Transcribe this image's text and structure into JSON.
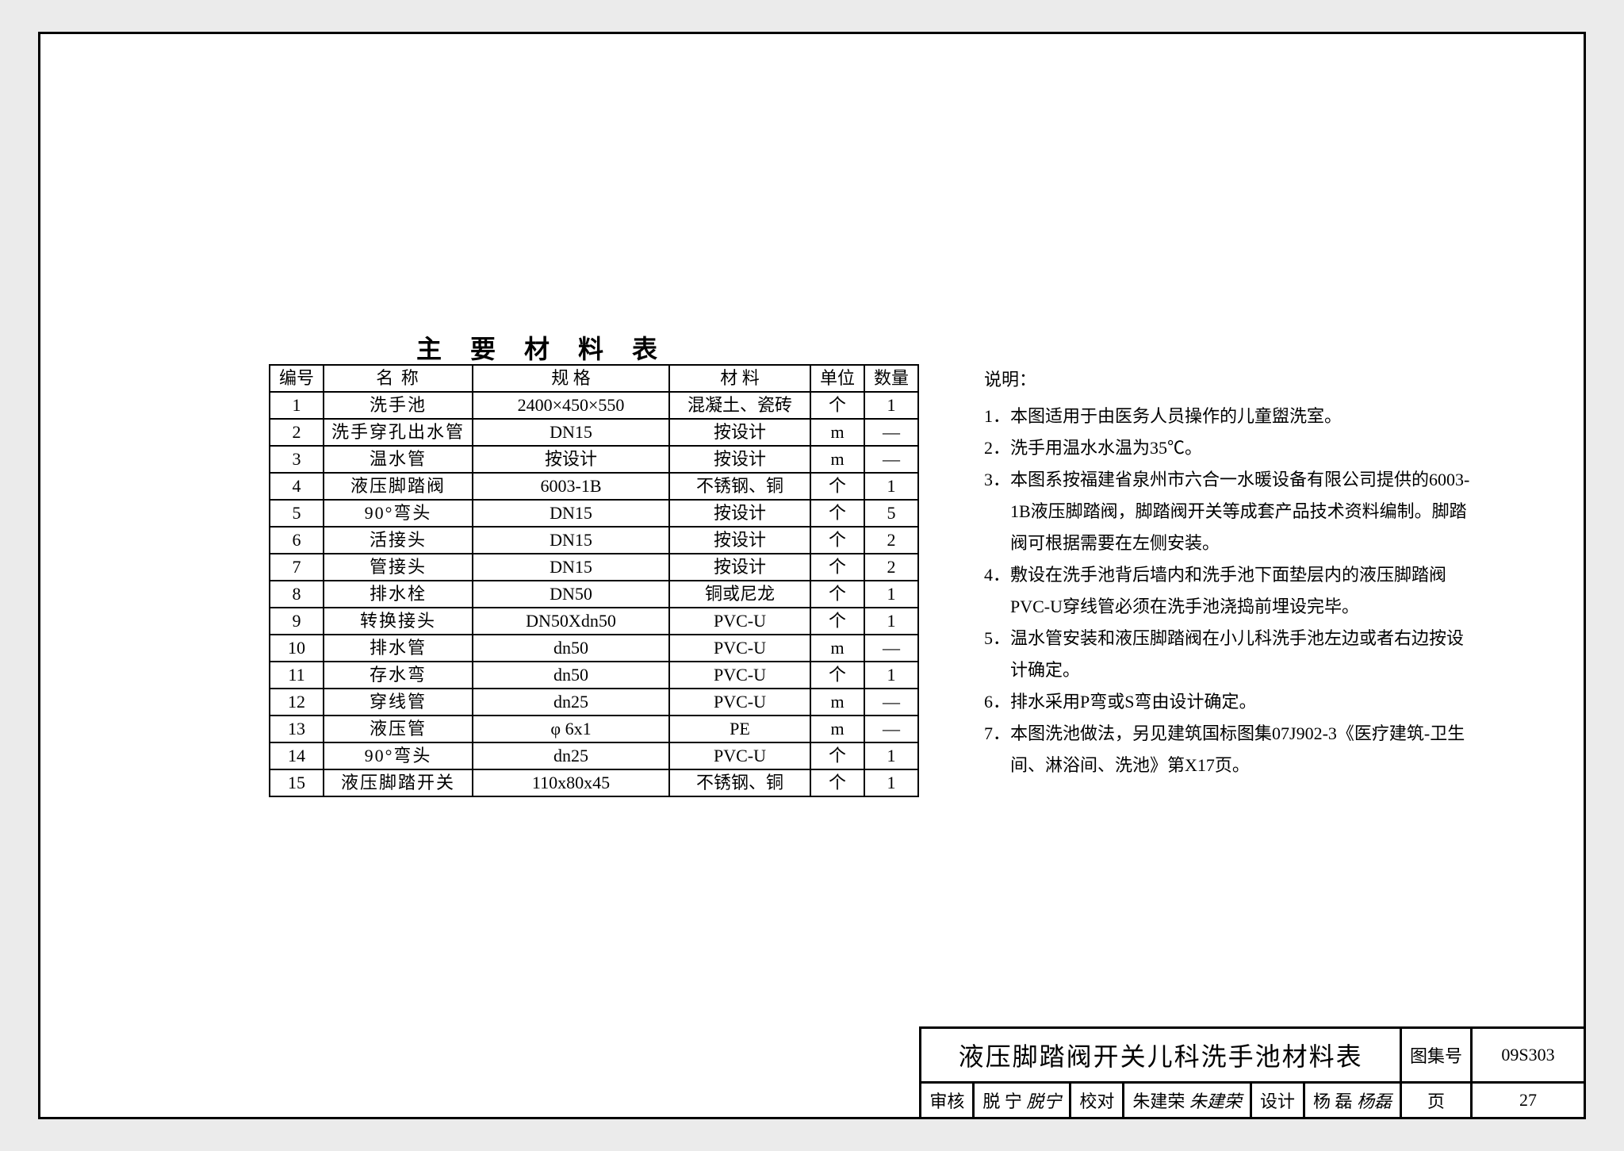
{
  "tableTitle": "主 要 材 料 表",
  "columns": [
    "编号",
    "名    称",
    "规        格",
    "材    料",
    "单位",
    "数量"
  ],
  "rows": [
    [
      "1",
      "洗手池",
      "2400×450×550",
      "混凝土、瓷砖",
      "个",
      "1"
    ],
    [
      "2",
      "洗手穿孔出水管",
      "DN15",
      "按设计",
      "m",
      "—"
    ],
    [
      "3",
      "温水管",
      "按设计",
      "按设计",
      "m",
      "—"
    ],
    [
      "4",
      "液压脚踏阀",
      "6003-1B",
      "不锈钢、铜",
      "个",
      "1"
    ],
    [
      "5",
      "90°弯头",
      "DN15",
      "按设计",
      "个",
      "5"
    ],
    [
      "6",
      "活接头",
      "DN15",
      "按设计",
      "个",
      "2"
    ],
    [
      "7",
      "管接头",
      "DN15",
      "按设计",
      "个",
      "2"
    ],
    [
      "8",
      "排水栓",
      "DN50",
      "铜或尼龙",
      "个",
      "1"
    ],
    [
      "9",
      "转换接头",
      "DN50Xdn50",
      "PVC-U",
      "个",
      "1"
    ],
    [
      "10",
      "排水管",
      "dn50",
      "PVC-U",
      "m",
      "—"
    ],
    [
      "11",
      "存水弯",
      "dn50",
      "PVC-U",
      "个",
      "1"
    ],
    [
      "12",
      "穿线管",
      "dn25",
      "PVC-U",
      "m",
      "—"
    ],
    [
      "13",
      "液压管",
      "φ 6x1",
      "PE",
      "m",
      "—"
    ],
    [
      "14",
      "90°弯头",
      "dn25",
      "PVC-U",
      "个",
      "1"
    ],
    [
      "15",
      "液压脚踏开关",
      "110x80x45",
      "不锈钢、铜",
      "个",
      "1"
    ]
  ],
  "notesTitle": "说明：",
  "notes": [
    "1．本图适用于由医务人员操作的儿童盥洗室。",
    "2．洗手用温水水温为35℃。",
    "3．本图系按福建省泉州市六合一水暖设备有限公司提供的6003-1B液压脚踏阀，脚踏阀开关等成套产品技术资料编制。脚踏阀可根据需要在左侧安装。",
    "4．敷设在洗手池背后墙内和洗手池下面垫层内的液压脚踏阀PVC-U穿线管必须在洗手池浇捣前埋设完毕。",
    "5．温水管安装和液压脚踏阀在小儿科洗手池左边或者右边按设计确定。",
    "6．排水采用P弯或S弯由设计确定。",
    "7．本图洗池做法，另见建筑国标图集07J902-3《医疗建筑-卫生间、淋浴间、洗池》第X17页。"
  ],
  "titleBlock": {
    "mainTitle": "液压脚踏阀开关儿科洗手池材料表",
    "setLabel": "图集号",
    "setNumber": "09S303",
    "pageLabel": "页",
    "pageNumber": "27",
    "labels": {
      "review": "审核",
      "reviewer": "脱 宁",
      "check": "校对",
      "checker": "朱建荣",
      "design": "设计",
      "designer": "杨 磊"
    },
    "sigs": {
      "reviewer": "脱宁",
      "checker": "朱建荣",
      "designer": "杨磊"
    }
  }
}
